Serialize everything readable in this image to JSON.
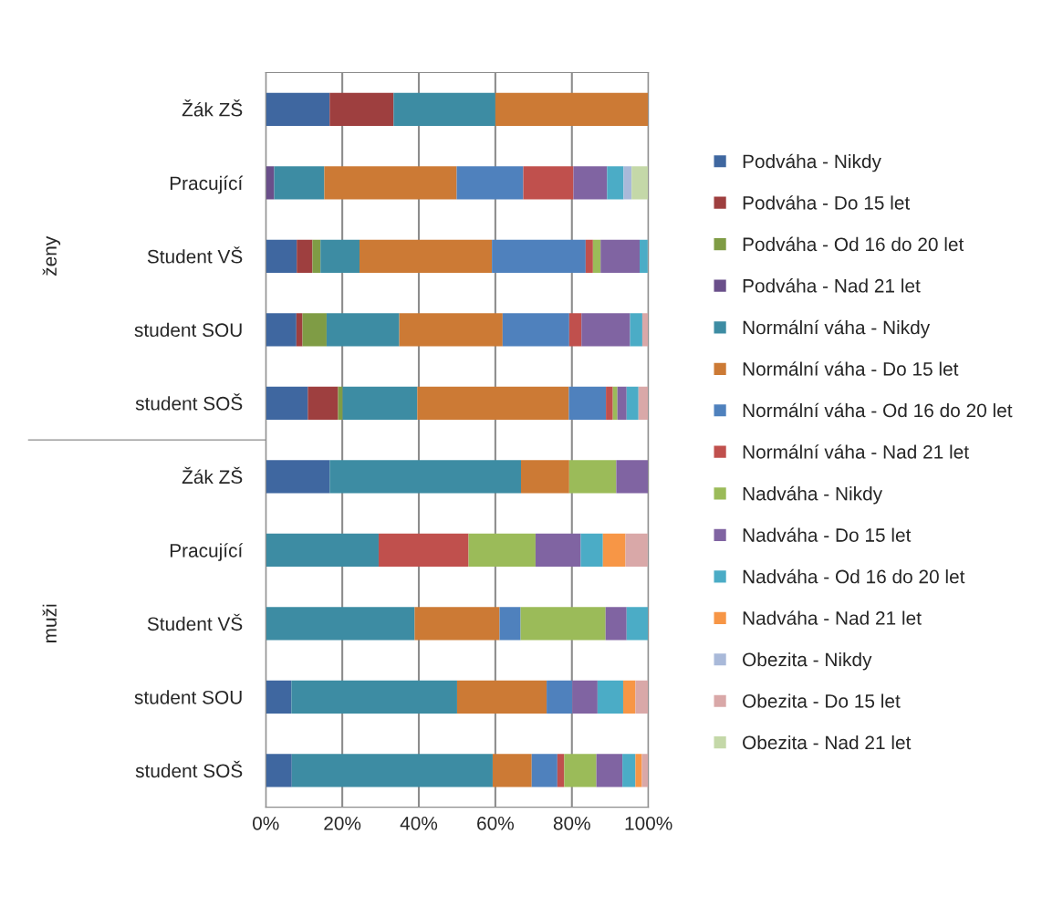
{
  "chart_data": {
    "type": "bar",
    "orientation": "horizontal",
    "stacked": true,
    "categories": [
      "Žák ZŠ",
      "Pracující",
      "Student VŠ",
      "student SOU",
      "student SOŠ",
      "Žák ZŠ",
      "Pracující",
      "Student VŠ",
      "student SOU",
      "student SOŠ"
    ],
    "annotations": [
      "ženy",
      "muži"
    ],
    "xlim": [
      0,
      100
    ],
    "xticks": [
      {
        "value": 0,
        "label": "0%"
      },
      {
        "value": 20,
        "label": "20%"
      },
      {
        "value": 40,
        "label": "40%"
      },
      {
        "value": 60,
        "label": "60%"
      },
      {
        "value": 80,
        "label": "80%"
      },
      {
        "value": 100,
        "label": "100%"
      }
    ],
    "grid": "x",
    "legend": "right",
    "series": [
      {
        "name": "Podváha - Nikdy",
        "color": "#3f67a0",
        "values": [
          16.7,
          null,
          8.1,
          8.0,
          11.0,
          16.7,
          null,
          null,
          6.7,
          6.8
        ]
      },
      {
        "name": "Podváha - Do 15 let",
        "color": "#9e3f3f",
        "values": [
          16.7,
          null,
          4.1,
          1.6,
          7.9,
          null,
          null,
          null,
          null,
          null
        ]
      },
      {
        "name": "Podváha - Od 16 do 20 let",
        "color": "#7f9c45",
        "values": [
          null,
          null,
          2.1,
          6.3,
          1.2,
          null,
          null,
          null,
          null,
          null
        ]
      },
      {
        "name": "Podváha - Nad 21 let",
        "color": "#6a4f8a",
        "values": [
          null,
          2.2,
          null,
          null,
          null,
          null,
          null,
          null,
          null,
          null
        ]
      },
      {
        "name": "Normální váha - Nikdy",
        "color": "#3d8ca3",
        "values": [
          26.6,
          13.1,
          10.2,
          19.0,
          19.5,
          50.0,
          29.5,
          38.9,
          43.3,
          52.5
        ]
      },
      {
        "name": "Normální váha - Do 15 let",
        "color": "#cc7a35",
        "values": [
          40.0,
          34.6,
          34.6,
          27.0,
          39.6,
          12.6,
          null,
          22.2,
          23.4,
          10.2
        ]
      },
      {
        "name": "Normální váha - Od 16 do 20 let",
        "color": "#4f81bd",
        "values": [
          null,
          17.4,
          24.5,
          17.4,
          9.7,
          null,
          null,
          5.5,
          6.7,
          6.7
        ]
      },
      {
        "name": "Normální váha - Nad 21 let",
        "color": "#c0504d",
        "values": [
          null,
          13.1,
          1.9,
          3.2,
          1.8,
          null,
          23.5,
          null,
          null,
          1.8
        ]
      },
      {
        "name": "Nadváha - Nikdy",
        "color": "#9bbb59",
        "values": [
          null,
          null,
          2.0,
          null,
          1.2,
          12.3,
          17.5,
          22.2,
          null,
          8.4
        ]
      },
      {
        "name": "Nadváha - Do 15 let",
        "color": "#8064a2",
        "values": [
          null,
          8.8,
          10.2,
          12.7,
          2.4,
          8.4,
          11.8,
          5.5,
          6.6,
          6.8
        ]
      },
      {
        "name": "Nadváha - Od 16 do 20 let",
        "color": "#4bacc6",
        "values": [
          null,
          4.3,
          2.1,
          3.2,
          3.1,
          null,
          5.8,
          5.6,
          6.7,
          3.4
        ]
      },
      {
        "name": "Nadváha - Nad 21 let",
        "color": "#f79646",
        "values": [
          null,
          null,
          null,
          null,
          null,
          null,
          5.9,
          null,
          3.2,
          1.7
        ]
      },
      {
        "name": "Obezita - Nikdy",
        "color": "#a9b9d9",
        "values": [
          null,
          2.1,
          null,
          null,
          null,
          null,
          null,
          null,
          null,
          null
        ]
      },
      {
        "name": "Obezita - Do 15 let",
        "color": "#d9a8a8",
        "values": [
          null,
          null,
          null,
          1.6,
          2.5,
          null,
          5.8,
          null,
          3.4,
          1.7
        ]
      },
      {
        "name": "Obezita - Nad 21 let",
        "color": "#c4d8a8",
        "values": [
          null,
          4.4,
          null,
          null,
          null,
          null,
          null,
          null,
          null,
          null
        ]
      }
    ]
  }
}
